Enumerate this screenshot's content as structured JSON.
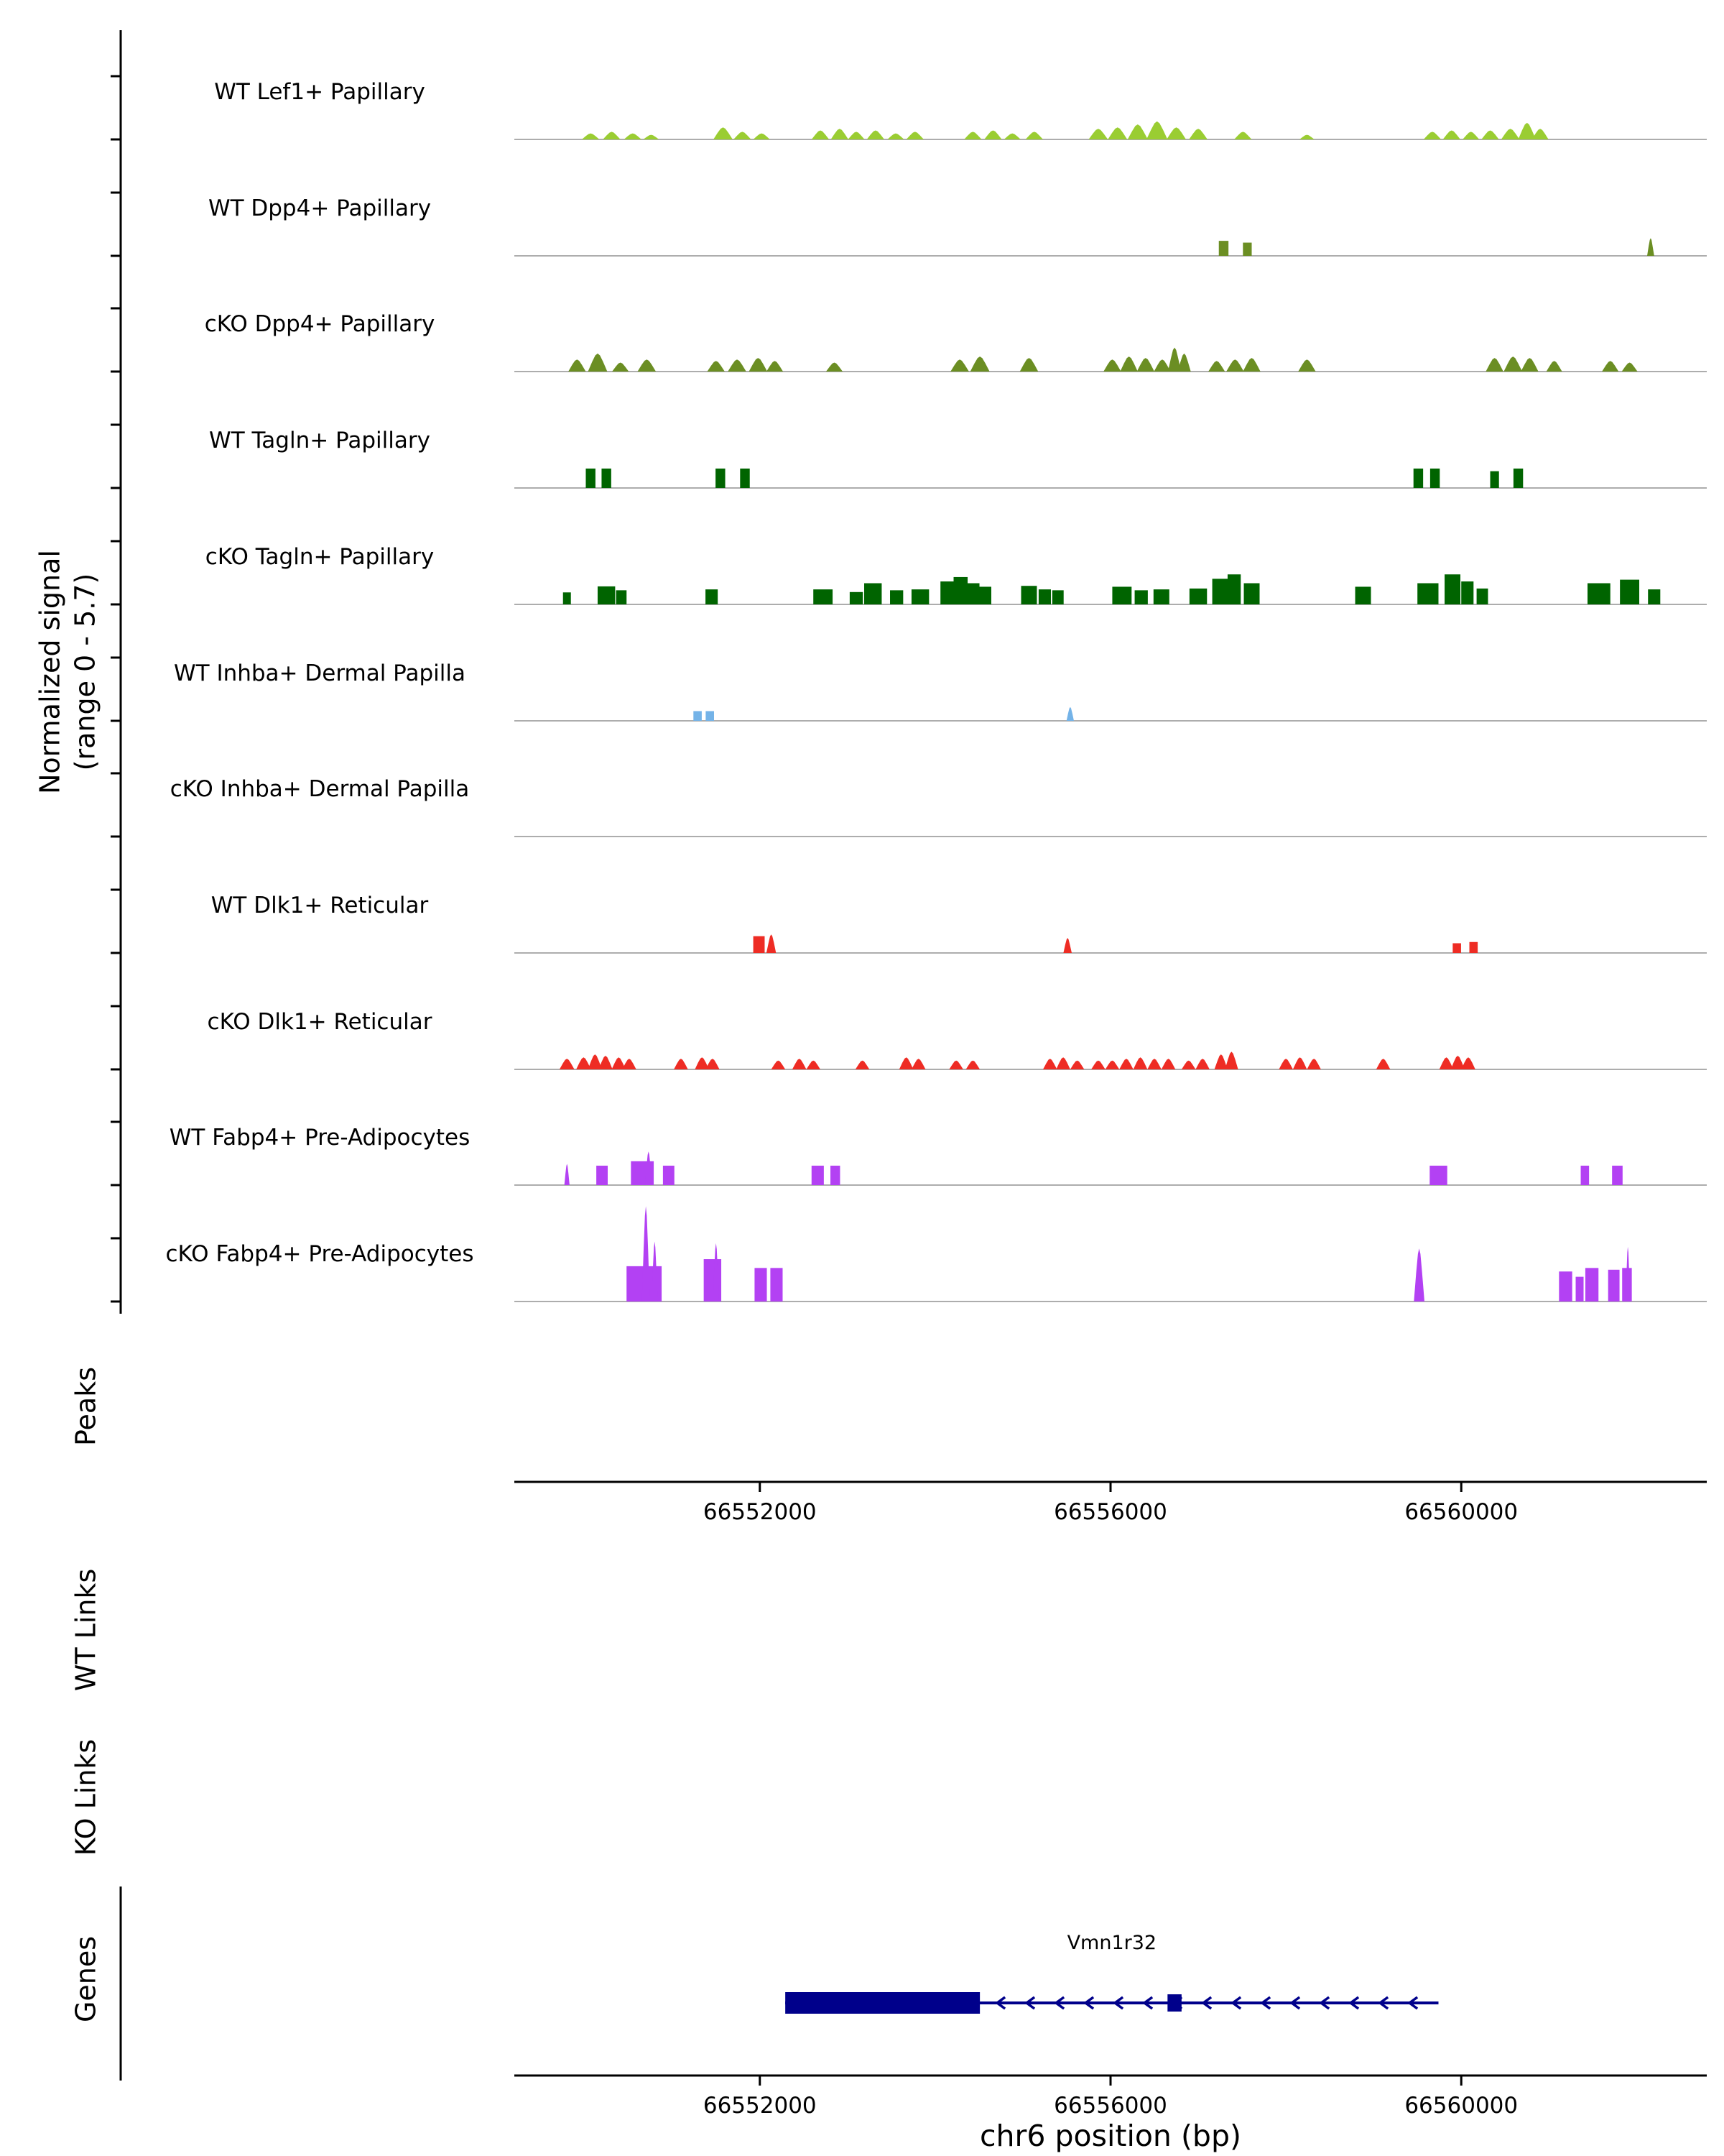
{
  "figure": {
    "y_axis_label_line1": "Normalized signal",
    "y_axis_label_line2": "(range 0 - 5.7)",
    "section_labels": {
      "peaks": "Peaks",
      "wt_links": "WT Links",
      "ko_links": "KO Links",
      "genes": "Genes"
    },
    "x_axis_title": "chr6 position (bp)"
  },
  "chart_data": {
    "type": "area",
    "xlabel": "chr6 position (bp)",
    "ylabel": "Normalized signal (range 0 - 5.7)",
    "x_range_bp": [
      66549200,
      66562800
    ],
    "y_range": [
      0,
      5.7
    ],
    "x_ticks": [
      66552000,
      66556000,
      66560000
    ],
    "x_tick_labels": [
      "66552000",
      "66556000",
      "66560000"
    ],
    "tracks": [
      {
        "label": "WT Lef1+ Papillary",
        "color": "#9ACD32",
        "shape": "t",
        "peaks": [
          [
            66550070,
            200,
            0.34
          ],
          [
            66550310,
            200,
            0.43
          ],
          [
            66550550,
            200,
            0.34
          ],
          [
            66550760,
            180,
            0.26
          ],
          [
            66551580,
            220,
            0.68
          ],
          [
            66551800,
            200,
            0.43
          ],
          [
            66552020,
            190,
            0.34
          ],
          [
            66552690,
            200,
            0.51
          ],
          [
            66552910,
            200,
            0.6
          ],
          [
            66553100,
            190,
            0.43
          ],
          [
            66553320,
            200,
            0.51
          ],
          [
            66553550,
            190,
            0.34
          ],
          [
            66553770,
            200,
            0.43
          ],
          [
            66554430,
            200,
            0.43
          ],
          [
            66554660,
            200,
            0.51
          ],
          [
            66554880,
            190,
            0.34
          ],
          [
            66555130,
            200,
            0.43
          ],
          [
            66555860,
            220,
            0.6
          ],
          [
            66556080,
            220,
            0.68
          ],
          [
            66556310,
            230,
            0.85
          ],
          [
            66556530,
            240,
            1.02
          ],
          [
            66556750,
            220,
            0.68
          ],
          [
            66557000,
            210,
            0.6
          ],
          [
            66557510,
            200,
            0.43
          ],
          [
            66558240,
            170,
            0.26
          ],
          [
            66559670,
            200,
            0.43
          ],
          [
            66559890,
            200,
            0.51
          ],
          [
            66560110,
            190,
            0.43
          ],
          [
            66560330,
            200,
            0.51
          ],
          [
            66560560,
            210,
            0.6
          ],
          [
            66560750,
            200,
            0.94
          ],
          [
            66560900,
            190,
            0.6
          ]
        ]
      },
      {
        "label": "WT Dpp4+ Papillary",
        "color": "#6B8E23",
        "shape": "r",
        "peaks": [
          [
            66557290,
            110,
            0.85
          ],
          [
            66557560,
            100,
            0.75
          ],
          [
            66562160,
            80,
            1.0,
            "t"
          ]
        ]
      },
      {
        "label": "cKO Dpp4+ Papillary",
        "color": "#6B8E23",
        "shape": "t",
        "peaks": [
          [
            66549915,
            200,
            0.68
          ],
          [
            66550150,
            220,
            1.02
          ],
          [
            66550410,
            190,
            0.51
          ],
          [
            66550710,
            210,
            0.68
          ],
          [
            66551500,
            200,
            0.6
          ],
          [
            66551740,
            210,
            0.68
          ],
          [
            66551980,
            210,
            0.77
          ],
          [
            66552170,
            190,
            0.6
          ],
          [
            66552850,
            190,
            0.51
          ],
          [
            66554280,
            210,
            0.68
          ],
          [
            66554510,
            220,
            0.85
          ],
          [
            66555070,
            210,
            0.77
          ],
          [
            66556020,
            200,
            0.68
          ],
          [
            66556210,
            200,
            0.85
          ],
          [
            66556400,
            200,
            0.77
          ],
          [
            66556590,
            190,
            0.68
          ],
          [
            66556730,
            150,
            1.36
          ],
          [
            66556840,
            150,
            1.02
          ],
          [
            66557210,
            190,
            0.6
          ],
          [
            66557420,
            200,
            0.68
          ],
          [
            66557610,
            200,
            0.77
          ],
          [
            66558240,
            200,
            0.68
          ],
          [
            66560380,
            200,
            0.77
          ],
          [
            66560590,
            210,
            0.85
          ],
          [
            66560780,
            200,
            0.77
          ],
          [
            66561060,
            180,
            0.6
          ],
          [
            66561700,
            190,
            0.6
          ],
          [
            66561920,
            180,
            0.51
          ]
        ]
      },
      {
        "label": "WT Tagln+ Papillary",
        "color": "#006400",
        "shape": "r",
        "peaks": [
          [
            66550070,
            110,
            1.1
          ],
          [
            66550250,
            110,
            1.1
          ],
          [
            66551550,
            110,
            1.1
          ],
          [
            66551830,
            110,
            1.1
          ],
          [
            66559510,
            110,
            1.1
          ],
          [
            66559700,
            110,
            1.1
          ],
          [
            66560380,
            100,
            0.95
          ],
          [
            66560650,
            110,
            1.1
          ]
        ]
      },
      {
        "label": "cKO Tagln+ Papillary",
        "color": "#006400",
        "shape": "r",
        "peaks": [
          [
            66549800,
            90,
            0.68
          ],
          [
            66550250,
            200,
            1.02
          ],
          [
            66550420,
            120,
            0.8
          ],
          [
            66551450,
            140,
            0.85
          ],
          [
            66552720,
            220,
            0.85
          ],
          [
            66553100,
            150,
            0.7
          ],
          [
            66553290,
            200,
            1.2
          ],
          [
            66553560,
            150,
            0.8
          ],
          [
            66553830,
            200,
            0.85
          ],
          [
            66554150,
            180,
            1.3
          ],
          [
            66554290,
            160,
            1.55
          ],
          [
            66554430,
            150,
            1.2
          ],
          [
            66554570,
            140,
            1.0
          ],
          [
            66555070,
            180,
            1.05
          ],
          [
            66555250,
            140,
            0.85
          ],
          [
            66555400,
            130,
            0.8
          ],
          [
            66556130,
            220,
            1.0
          ],
          [
            66556350,
            150,
            0.8
          ],
          [
            66556580,
            180,
            0.85
          ],
          [
            66557000,
            200,
            0.9
          ],
          [
            66557260,
            200,
            1.45
          ],
          [
            66557410,
            150,
            1.7
          ],
          [
            66557610,
            180,
            1.2
          ],
          [
            66558880,
            180,
            1.0
          ],
          [
            66559620,
            240,
            1.2
          ],
          [
            66559900,
            180,
            1.7
          ],
          [
            66560070,
            140,
            1.3
          ],
          [
            66560240,
            130,
            0.9
          ],
          [
            66561570,
            260,
            1.2
          ],
          [
            66561920,
            220,
            1.4
          ],
          [
            66562200,
            140,
            0.85
          ]
        ]
      },
      {
        "label": "WT Inhba+ Dermal Papilla",
        "color": "#74B3E8",
        "shape": "r",
        "peaks": [
          [
            66551290,
            95,
            0.55
          ],
          [
            66551430,
            95,
            0.55
          ],
          [
            66555540,
            85,
            0.78,
            "t"
          ]
        ]
      },
      {
        "label": "cKO Inhba+ Dermal Papilla",
        "color": "#74B3E8",
        "shape": "r",
        "peaks": []
      },
      {
        "label": "WT Dlk1+ Reticular",
        "color": "#EE2C24",
        "shape": "r",
        "peaks": [
          [
            66551990,
            130,
            0.95
          ],
          [
            66552130,
            110,
            1.05,
            "t"
          ],
          [
            66555510,
            95,
            0.85,
            "t"
          ],
          [
            66559950,
            95,
            0.55
          ],
          [
            66560140,
            95,
            0.62
          ]
        ]
      },
      {
        "label": "cKO Dlk1+ Reticular",
        "color": "#EE2C24",
        "shape": "t",
        "peaks": [
          [
            66549800,
            170,
            0.6
          ],
          [
            66549990,
            170,
            0.68
          ],
          [
            66550120,
            160,
            0.85
          ],
          [
            66550240,
            160,
            0.77
          ],
          [
            66550390,
            160,
            0.68
          ],
          [
            66550510,
            160,
            0.6
          ],
          [
            66551100,
            160,
            0.6
          ],
          [
            66551340,
            160,
            0.68
          ],
          [
            66551460,
            160,
            0.6
          ],
          [
            66552210,
            160,
            0.5
          ],
          [
            66552450,
            160,
            0.6
          ],
          [
            66552610,
            160,
            0.5
          ],
          [
            66553170,
            160,
            0.5
          ],
          [
            66553670,
            160,
            0.68
          ],
          [
            66553810,
            160,
            0.6
          ],
          [
            66554240,
            160,
            0.5
          ],
          [
            66554430,
            160,
            0.5
          ],
          [
            66555310,
            160,
            0.6
          ],
          [
            66555460,
            160,
            0.68
          ],
          [
            66555620,
            160,
            0.5
          ],
          [
            66555860,
            160,
            0.5
          ],
          [
            66556020,
            160,
            0.5
          ],
          [
            66556180,
            160,
            0.6
          ],
          [
            66556340,
            160,
            0.68
          ],
          [
            66556500,
            160,
            0.6
          ],
          [
            66556660,
            160,
            0.6
          ],
          [
            66556890,
            160,
            0.5
          ],
          [
            66557050,
            160,
            0.6
          ],
          [
            66557260,
            150,
            0.85
          ],
          [
            66557380,
            150,
            1.0
          ],
          [
            66558000,
            160,
            0.6
          ],
          [
            66558160,
            160,
            0.68
          ],
          [
            66558320,
            160,
            0.6
          ],
          [
            66559110,
            160,
            0.6
          ],
          [
            66559830,
            160,
            0.68
          ],
          [
            66559960,
            160,
            0.77
          ],
          [
            66560080,
            160,
            0.68
          ]
        ]
      },
      {
        "label": "WT Fabp4+ Pre-Adipocytes",
        "color": "#B341F3",
        "shape": "r",
        "peaks": [
          [
            66549800,
            60,
            1.2,
            "t"
          ],
          [
            66550200,
            130,
            1.1
          ],
          [
            66550660,
            260,
            1.35
          ],
          [
            66550730,
            80,
            1.9,
            "t"
          ],
          [
            66550960,
            130,
            1.1
          ],
          [
            66552660,
            140,
            1.1
          ],
          [
            66552860,
            110,
            1.1
          ],
          [
            66559740,
            200,
            1.1
          ],
          [
            66561410,
            95,
            1.1
          ],
          [
            66561780,
            120,
            1.1
          ]
        ]
      },
      {
        "label": "cKO Fabp4+ Pre-Adipocytes",
        "color": "#B341F3",
        "shape": "r",
        "peaks": [
          [
            66550680,
            400,
            2.0
          ],
          [
            66550700,
            90,
            5.4,
            "t"
          ],
          [
            66550800,
            70,
            3.4,
            "t"
          ],
          [
            66551460,
            200,
            2.4
          ],
          [
            66551500,
            70,
            3.3,
            "t"
          ],
          [
            66552010,
            140,
            1.9
          ],
          [
            66552190,
            140,
            1.9
          ],
          [
            66559520,
            120,
            3.0,
            "t"
          ],
          [
            66561190,
            150,
            1.7
          ],
          [
            66561350,
            90,
            1.4
          ],
          [
            66561490,
            150,
            1.9
          ],
          [
            66561740,
            130,
            1.8
          ],
          [
            66561890,
            110,
            1.9
          ],
          [
            66561900,
            50,
            3.1,
            "t"
          ]
        ]
      }
    ],
    "gene_track": {
      "name": "Vmn1r32",
      "strand": "-",
      "color": "#00008B",
      "gene_start_bp": 66552290,
      "gene_end_bp": 66559740,
      "thick_exon_bp": [
        66552290,
        66554510
      ],
      "small_exon_bp": [
        66556650,
        66556810
      ]
    }
  }
}
